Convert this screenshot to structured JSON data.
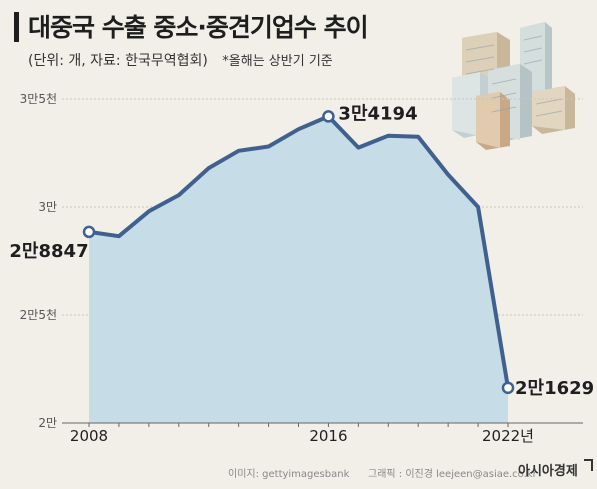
{
  "header": {
    "title": "대중국 수출 중소·중견기업수 추이",
    "subtitle": "(단위: 개, 자료: 한국무역협회)",
    "note": "*올해는 상반기 기준"
  },
  "credits": {
    "image": "이미지: gettyimagesbank",
    "graphic": "그래픽 : 이진경 leejeen@asiae.co.kr",
    "brand": "아시아경제"
  },
  "colors": {
    "line": "#40608f",
    "area": "#c6dce7",
    "background": "#f1efe8",
    "grid": "#c9c6bd",
    "text": "#1e1e1e"
  },
  "icons": [
    "buildings-illustration",
    "asiae-logo-mark"
  ],
  "chart_data": {
    "type": "area",
    "title": "대중국 수출 중소·중견기업수 추이",
    "subtitle": "(단위: 개, 자료: 한국무역협회)",
    "x": [
      2008,
      2009,
      2010,
      2011,
      2012,
      2013,
      2014,
      2015,
      2016,
      2017,
      2018,
      2019,
      2020,
      2021,
      2022
    ],
    "values": [
      28847,
      28650,
      29800,
      30550,
      31800,
      32600,
      32800,
      33600,
      34194,
      32750,
      33300,
      33250,
      31500,
      30000,
      21629
    ],
    "xlim": [
      2008,
      2022
    ],
    "ylim": [
      20000,
      35000
    ],
    "yticks": [
      35000,
      30000,
      25000,
      20000
    ],
    "ytick_labels": [
      "3만5천",
      "3만",
      "2만5천",
      "2만"
    ],
    "xticks": [
      2008,
      2016,
      2022
    ],
    "xtick_labels": [
      "2008",
      "2016",
      "2022년"
    ],
    "annotations": [
      {
        "x": 2008,
        "text": "2만8847"
      },
      {
        "x": 2016,
        "text": "3만4194"
      },
      {
        "x": 2022,
        "text": "2만1629"
      }
    ],
    "grid": true
  }
}
